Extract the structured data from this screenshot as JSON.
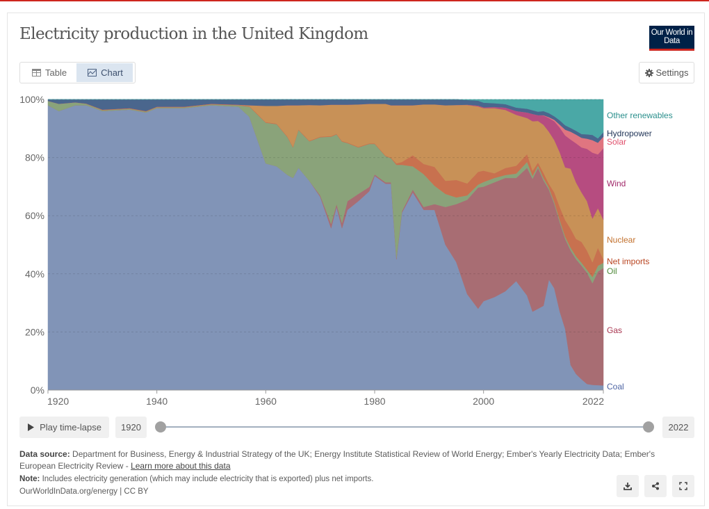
{
  "header": {
    "title": "Electricity production in the United Kingdom",
    "logo_text": "Our World in Data"
  },
  "tabs": [
    {
      "label": "Table",
      "icon": "table-icon"
    },
    {
      "label": "Chart",
      "icon": "chart-icon",
      "active": true
    }
  ],
  "settings_label": "Settings",
  "timeline": {
    "play_label": "Play time-lapse",
    "start_year": "1920",
    "end_year": "2022"
  },
  "footer": {
    "source_label": "Data source:",
    "source_text": "Department for Business, Energy & Industrial Strategy of the UK; Energy Institute Statistical Review of World Energy; Ember's Yearly Electricity Data; Ember's European Electricity Review - ",
    "learn_more": "Learn more about this data",
    "note_label": "Note:",
    "note_text": "Includes electricity generation (which may include electricity that is exported) plus net imports.",
    "credit": "OurWorldInData.org/energy | CC BY"
  },
  "chart_data": {
    "type": "area",
    "stacked": "relative",
    "title": "Electricity production in the United Kingdom",
    "ylim": [
      0,
      100
    ],
    "xlim": [
      1920,
      2022
    ],
    "y_ticks": [
      "0%",
      "20%",
      "40%",
      "60%",
      "80%",
      "100%"
    ],
    "x_ticks": [
      "1920",
      "1940",
      "1960",
      "1980",
      "2000",
      "2022"
    ],
    "legend_placement": "right (inline labels)",
    "x": [
      1920,
      1922,
      1925,
      1927,
      1930,
      1935,
      1938,
      1940,
      1945,
      1950,
      1955,
      1957,
      1960,
      1962,
      1964,
      1965,
      1966,
      1968,
      1970,
      1972,
      1973,
      1974,
      1975,
      1977,
      1979,
      1980,
      1982,
      1983,
      1984,
      1985,
      1987,
      1989,
      1991,
      1993,
      1995,
      1997,
      1999,
      2000,
      2002,
      2004,
      2006,
      2008,
      2009,
      2010,
      2011,
      2012,
      2013,
      2014,
      2015,
      2016,
      2017,
      2018,
      2019,
      2020,
      2021,
      2022
    ],
    "series": [
      {
        "name": "Coal",
        "color": "#8194b7",
        "label_color": "#4c63a3",
        "values": [
          98,
          96,
          98,
          98,
          96,
          96.5,
          95.5,
          97,
          97,
          98,
          97.5,
          94,
          78,
          77,
          74,
          73,
          76.5,
          72,
          66.5,
          55.7,
          63,
          55.7,
          62,
          65,
          68.4,
          73.7,
          71,
          71,
          45,
          61,
          68,
          62,
          62,
          50,
          44,
          33,
          28,
          30.6,
          32,
          34,
          37.5,
          32.5,
          27,
          28,
          29,
          38,
          35,
          27,
          21,
          8.6,
          5.5,
          3.7,
          2.1,
          1.8,
          1.7,
          1.6
        ]
      },
      {
        "name": "Gas",
        "color": "#a86d73",
        "label_color": "#a8354f",
        "values": [
          0,
          0,
          0,
          0,
          0,
          0,
          0,
          0,
          0,
          0,
          0,
          0,
          0,
          0,
          0,
          0,
          0,
          0,
          0.5,
          1.5,
          1,
          1.8,
          3,
          2.5,
          1.5,
          0.5,
          0.5,
          0.5,
          0.5,
          0.5,
          1,
          1,
          2,
          13,
          20,
          32.5,
          41.7,
          39.4,
          39.5,
          39,
          35.5,
          44,
          45.7,
          48.5,
          43.2,
          31,
          29,
          30.7,
          31,
          39.4,
          39.5,
          39.1,
          38.3,
          35,
          39.1,
          40.4
        ]
      },
      {
        "name": "Oil",
        "color": "#8aa37a",
        "label_color": "#4f8a3a",
        "values": [
          1.5,
          2.5,
          1,
          0.5,
          0.3,
          0.3,
          0.3,
          0.3,
          0.3,
          0.3,
          0.5,
          3.5,
          14,
          14.5,
          13,
          10.5,
          13,
          13.6,
          20,
          30,
          24,
          28,
          20,
          16,
          14.8,
          10.5,
          9,
          8.3,
          32,
          16,
          8,
          11.3,
          6.3,
          4.5,
          2.3,
          1.5,
          1,
          1.6,
          1.5,
          1,
          1.5,
          2,
          1,
          0.8,
          0.8,
          0.7,
          0.7,
          0.8,
          0.8,
          1,
          1,
          1,
          1,
          2.1,
          2,
          1.8
        ]
      },
      {
        "name": "Net imports",
        "color": "#c8714f",
        "label_color": "#b8431f",
        "values": [
          0,
          0,
          0,
          0.1,
          0.2,
          0.2,
          0.2,
          0.2,
          0.2,
          0.2,
          0.2,
          0.2,
          0.2,
          0.2,
          0.2,
          0.2,
          0.2,
          0.2,
          0.2,
          0.2,
          0.2,
          0.2,
          0.2,
          0.2,
          0.2,
          0.2,
          0.2,
          0.2,
          0.5,
          1,
          3.8,
          3.5,
          6.5,
          4.5,
          6,
          4.1,
          4.4,
          3.9,
          1.6,
          2.4,
          2.7,
          2.7,
          1.8,
          1,
          1.8,
          1.3,
          3.3,
          4.5,
          5.7,
          6.5,
          6,
          7.2,
          6.6,
          5.1,
          6.2,
          1.2
        ]
      },
      {
        "name": "Nuclear",
        "color": "#c89157",
        "label_color": "#c2702c",
        "values": [
          0,
          0,
          0,
          0,
          0,
          0,
          0,
          0,
          0,
          0,
          0,
          0.3,
          5.6,
          6.1,
          10.8,
          14.3,
          8.3,
          12.3,
          10.8,
          10.8,
          10,
          12.5,
          13,
          14.6,
          13.6,
          13.6,
          17.8,
          18,
          20,
          19.5,
          17.2,
          20.5,
          21.5,
          26,
          25.8,
          27,
          22.5,
          21.5,
          22.4,
          20,
          17.5,
          12.4,
          17,
          14.3,
          16.5,
          17.9,
          18,
          18.8,
          18.1,
          20.7,
          19.4,
          17,
          17,
          15,
          13.6,
          13.6
        ]
      },
      {
        "name": "Wind",
        "color": "#b64c80",
        "label_color": "#a1296a",
        "values": [
          0,
          0,
          0,
          0,
          0,
          0,
          0,
          0,
          0,
          0,
          0,
          0,
          0,
          0,
          0,
          0,
          0,
          0,
          0,
          0,
          0,
          0,
          0,
          0,
          0,
          0,
          0,
          0,
          0,
          0,
          0,
          0,
          0,
          0,
          0,
          0.1,
          0.3,
          0.3,
          0.4,
          0.8,
          1.3,
          1.9,
          2.5,
          2,
          3.2,
          4.7,
          6.5,
          8.5,
          11,
          10,
          13.5,
          15.5,
          18,
          22.7,
          18.5,
          24.6
        ]
      },
      {
        "name": "Solar",
        "color": "#e07580",
        "label_color": "#e0506c",
        "values": [
          0,
          0,
          0,
          0,
          0,
          0,
          0,
          0,
          0,
          0,
          0,
          0,
          0,
          0,
          0,
          0,
          0,
          0,
          0,
          0,
          0,
          0,
          0,
          0,
          0,
          0,
          0,
          0,
          0,
          0,
          0,
          0,
          0,
          0,
          0,
          0,
          0,
          0,
          0,
          0,
          0,
          0,
          0,
          0,
          0.1,
          0.3,
          0.5,
          1,
          2,
          2.7,
          3,
          3.3,
          3.5,
          4.3,
          4,
          4
        ]
      },
      {
        "name": "Hydropower",
        "color": "#4a668d",
        "label_color": "#1f3356",
        "values": [
          0.5,
          1.5,
          1,
          1.4,
          3.5,
          3,
          4,
          2.5,
          2.5,
          1.5,
          1.8,
          2,
          2.2,
          2.2,
          2,
          2,
          2,
          1.9,
          2,
          1.8,
          1.8,
          1.8,
          1.8,
          1.7,
          1.5,
          1.5,
          1.5,
          2,
          2,
          2,
          2,
          1.7,
          1.7,
          2,
          1.9,
          1.6,
          1.7,
          1.6,
          1.3,
          1.2,
          1.2,
          1.3,
          1.3,
          1.2,
          1.4,
          1.4,
          1.2,
          1.5,
          1.5,
          1.3,
          1.3,
          1.3,
          1.5,
          1.8,
          1.5,
          1.5
        ]
      },
      {
        "name": "Other renewables",
        "color": "#4aa8a6",
        "label_color": "#2a8f8c",
        "values": [
          0,
          0,
          0,
          0,
          0,
          0,
          0,
          0,
          0,
          0,
          0,
          0,
          0,
          0,
          0,
          0,
          0,
          0,
          0,
          0,
          0,
          0,
          0,
          0,
          0,
          0,
          0,
          0,
          0,
          0,
          0,
          0,
          0,
          0,
          0,
          0.2,
          0.4,
          1.1,
          1.3,
          1.6,
          2.8,
          3.2,
          3.7,
          4.2,
          4,
          4.7,
          5.8,
          7.2,
          8.9,
          9.8,
          10.8,
          11.9,
          12,
          12.2,
          13.4,
          11.3
        ]
      }
    ]
  }
}
